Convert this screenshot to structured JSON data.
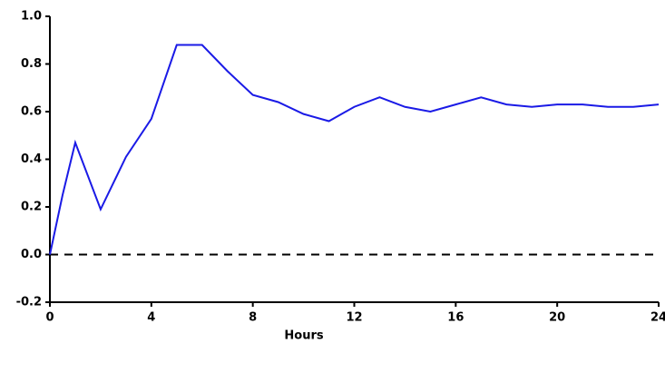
{
  "chart_data": {
    "type": "line",
    "x_label": "Hours",
    "x": [
      0,
      0.5,
      1,
      2,
      3,
      4,
      5,
      6,
      7,
      8,
      9,
      10,
      11,
      12,
      13,
      14,
      15,
      16,
      17,
      18,
      19,
      20,
      21,
      22,
      23,
      24
    ],
    "values": [
      0,
      0.25,
      0.47,
      0.19,
      0.41,
      0.57,
      0.88,
      0.88,
      0.77,
      0.67,
      0.64,
      0.59,
      0.56,
      0.62,
      0.66,
      0.62,
      0.6,
      0.63,
      0.66,
      0.63,
      0.62,
      0.63,
      0.63,
      0.62,
      0.62,
      0.63
    ],
    "color": "#1a1ae6",
    "xlim": [
      0,
      24
    ],
    "xticks": [
      0,
      4,
      8,
      12,
      16,
      20,
      24
    ],
    "ylim": [
      -0.2,
      1
    ],
    "yticks": [
      {
        "value": 1,
        "label": "1.0"
      },
      0.8,
      0.6,
      0.4,
      0.2,
      {
        "value": 0,
        "label": "0.0"
      },
      -0.2
    ],
    "zero_line": true
  }
}
